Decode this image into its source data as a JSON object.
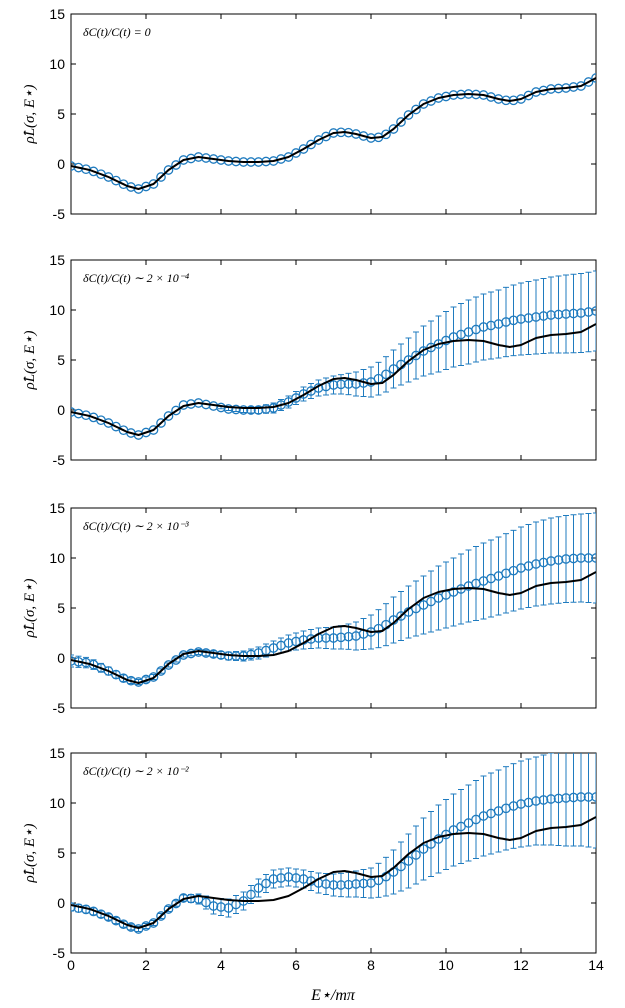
{
  "figure": {
    "xlabel": "E⋆/mπ",
    "ylabel": "ρ̂L(σ, E⋆)"
  },
  "colors": {
    "exact": "#000000",
    "estimate": "#1f7bbf"
  },
  "chart_data": [
    {
      "type": "line",
      "panel": 1,
      "annotation": "δC(t)/C(t) = 0",
      "xlim": [
        0,
        14
      ],
      "ylim": [
        -5,
        15
      ],
      "xticks": [
        0,
        2,
        4,
        6,
        8,
        10,
        12,
        14
      ],
      "yticks": [
        -5,
        0,
        5,
        10,
        15
      ],
      "x_tick_labels_shown": false,
      "series": [
        {
          "kind": "line",
          "x": [
            0,
            0.5,
            1.0,
            1.5,
            1.8,
            2.2,
            2.6,
            3.0,
            3.4,
            3.8,
            4.2,
            4.6,
            5.0,
            5.4,
            5.8,
            6.2,
            6.6,
            7.0,
            7.3,
            7.6,
            8.0,
            8.3,
            8.6,
            9.0,
            9.4,
            9.8,
            10.2,
            10.6,
            11.0,
            11.4,
            11.7,
            12.0,
            12.4,
            12.8,
            13.2,
            13.6,
            14.0
          ],
          "y": [
            -0.2,
            -0.6,
            -1.3,
            -2.2,
            -2.5,
            -2.0,
            -0.6,
            0.4,
            0.7,
            0.5,
            0.3,
            0.2,
            0.2,
            0.3,
            0.7,
            1.5,
            2.4,
            3.1,
            3.2,
            3.0,
            2.6,
            2.7,
            3.5,
            4.9,
            6.0,
            6.6,
            6.9,
            7.0,
            6.9,
            6.5,
            6.3,
            6.5,
            7.2,
            7.5,
            7.6,
            7.8,
            8.6
          ]
        },
        {
          "kind": "points",
          "x": [
            0,
            0.5,
            1.0,
            1.5,
            1.8,
            2.2,
            2.6,
            3.0,
            3.4,
            3.8,
            4.2,
            4.6,
            5.0,
            5.4,
            5.8,
            6.2,
            6.6,
            7.0,
            7.3,
            7.6,
            8.0,
            8.3,
            8.6,
            9.0,
            9.4,
            9.8,
            10.2,
            10.6,
            11.0,
            11.4,
            11.7,
            12.0,
            12.4,
            12.8,
            13.2,
            13.6,
            14.0
          ],
          "y": [
            -0.2,
            -0.6,
            -1.3,
            -2.2,
            -2.5,
            -2.0,
            -0.6,
            0.4,
            0.7,
            0.5,
            0.3,
            0.2,
            0.2,
            0.3,
            0.7,
            1.5,
            2.4,
            3.1,
            3.2,
            3.0,
            2.6,
            2.7,
            3.5,
            4.9,
            6.0,
            6.6,
            6.9,
            7.0,
            6.9,
            6.5,
            6.3,
            6.5,
            7.2,
            7.5,
            7.6,
            7.8,
            8.6
          ],
          "err": [
            0.03,
            0.03,
            0.03,
            0.03,
            0.03,
            0.03,
            0.03,
            0.03,
            0.03,
            0.03,
            0.03,
            0.03,
            0.03,
            0.03,
            0.03,
            0.03,
            0.03,
            0.03,
            0.03,
            0.03,
            0.03,
            0.03,
            0.03,
            0.03,
            0.03,
            0.03,
            0.03,
            0.03,
            0.03,
            0.03,
            0.03,
            0.03,
            0.03,
            0.03,
            0.03,
            0.03,
            0.03
          ]
        }
      ]
    },
    {
      "type": "line",
      "panel": 2,
      "annotation": "δC(t)/C(t) ∼ 2 × 10⁻⁴",
      "xlim": [
        0,
        14
      ],
      "ylim": [
        -5,
        15
      ],
      "xticks": [
        0,
        2,
        4,
        6,
        8,
        10,
        12,
        14
      ],
      "yticks": [
        -5,
        0,
        5,
        10,
        15
      ],
      "x_tick_labels_shown": false,
      "series": [
        {
          "kind": "line",
          "x": [
            0,
            0.5,
            1.0,
            1.5,
            1.8,
            2.2,
            2.6,
            3.0,
            3.4,
            3.8,
            4.2,
            4.6,
            5.0,
            5.4,
            5.8,
            6.2,
            6.6,
            7.0,
            7.3,
            7.6,
            8.0,
            8.3,
            8.6,
            9.0,
            9.4,
            9.8,
            10.2,
            10.6,
            11.0,
            11.4,
            11.7,
            12.0,
            12.4,
            12.8,
            13.2,
            13.6,
            14.0
          ],
          "y": [
            -0.2,
            -0.6,
            -1.3,
            -2.2,
            -2.5,
            -2.0,
            -0.6,
            0.4,
            0.7,
            0.5,
            0.3,
            0.2,
            0.2,
            0.3,
            0.7,
            1.5,
            2.4,
            3.1,
            3.2,
            3.0,
            2.6,
            2.7,
            3.5,
            4.9,
            6.0,
            6.6,
            6.9,
            7.0,
            6.9,
            6.5,
            6.3,
            6.5,
            7.2,
            7.5,
            7.6,
            7.8,
            8.6
          ]
        },
        {
          "kind": "points",
          "x": [
            0,
            0.5,
            1.0,
            1.5,
            1.8,
            2.2,
            2.6,
            3.0,
            3.4,
            3.8,
            4.2,
            4.6,
            5.0,
            5.4,
            5.8,
            6.2,
            6.6,
            7.0,
            7.3,
            7.6,
            8.0,
            8.3,
            8.6,
            9.0,
            9.4,
            9.8,
            10.2,
            10.6,
            11.0,
            11.4,
            11.7,
            12.0,
            12.4,
            12.8,
            13.2,
            13.6,
            14.0
          ],
          "y": [
            -0.2,
            -0.6,
            -1.3,
            -2.2,
            -2.5,
            -2.0,
            -0.6,
            0.5,
            0.7,
            0.4,
            0.1,
            0.0,
            0.0,
            0.2,
            0.8,
            1.6,
            2.2,
            2.5,
            2.6,
            2.6,
            2.8,
            3.3,
            4.1,
            5.0,
            5.9,
            6.6,
            7.3,
            7.8,
            8.3,
            8.6,
            8.9,
            9.1,
            9.3,
            9.5,
            9.6,
            9.7,
            9.9
          ],
          "err": [
            0.05,
            0.05,
            0.05,
            0.05,
            0.05,
            0.05,
            0.05,
            0.05,
            0.05,
            0.1,
            0.15,
            0.25,
            0.35,
            0.5,
            0.6,
            0.7,
            0.8,
            0.9,
            1.0,
            1.2,
            1.5,
            1.7,
            1.9,
            2.2,
            2.5,
            2.8,
            3.0,
            3.2,
            3.3,
            3.4,
            3.5,
            3.6,
            3.7,
            3.8,
            3.9,
            3.95,
            4.0
          ]
        }
      ]
    },
    {
      "type": "line",
      "panel": 3,
      "annotation": "δC(t)/C(t) ∼ 2 × 10⁻³",
      "xlim": [
        0,
        14
      ],
      "ylim": [
        -5,
        15
      ],
      "xticks": [
        0,
        2,
        4,
        6,
        8,
        10,
        12,
        14
      ],
      "yticks": [
        -5,
        0,
        5,
        10,
        15
      ],
      "x_tick_labels_shown": false,
      "series": [
        {
          "kind": "line",
          "x": [
            0,
            0.5,
            1.0,
            1.5,
            1.8,
            2.2,
            2.6,
            3.0,
            3.4,
            3.8,
            4.2,
            4.6,
            5.0,
            5.4,
            5.8,
            6.2,
            6.6,
            7.0,
            7.3,
            7.6,
            8.0,
            8.3,
            8.6,
            9.0,
            9.4,
            9.8,
            10.2,
            10.6,
            11.0,
            11.4,
            11.7,
            12.0,
            12.4,
            12.8,
            13.2,
            13.6,
            14.0
          ],
          "y": [
            -0.2,
            -0.6,
            -1.3,
            -2.2,
            -2.5,
            -2.0,
            -0.6,
            0.4,
            0.7,
            0.5,
            0.3,
            0.2,
            0.2,
            0.3,
            0.7,
            1.5,
            2.4,
            3.1,
            3.2,
            3.0,
            2.6,
            2.7,
            3.5,
            4.9,
            6.0,
            6.6,
            6.9,
            7.0,
            6.9,
            6.5,
            6.3,
            6.5,
            7.2,
            7.5,
            7.6,
            7.8,
            8.6
          ]
        },
        {
          "kind": "points",
          "x": [
            0,
            0.5,
            1.0,
            1.5,
            1.8,
            2.2,
            2.6,
            3.0,
            3.4,
            3.8,
            4.2,
            4.6,
            5.0,
            5.4,
            5.8,
            6.2,
            6.6,
            7.0,
            7.3,
            7.6,
            8.0,
            8.3,
            8.6,
            9.0,
            9.4,
            9.8,
            10.2,
            10.6,
            11.0,
            11.4,
            11.7,
            12.0,
            12.4,
            12.8,
            13.2,
            13.6,
            14.0
          ],
          "y": [
            -0.3,
            -0.5,
            -1.3,
            -2.2,
            -2.4,
            -1.9,
            -0.7,
            0.3,
            0.6,
            0.4,
            0.2,
            0.2,
            0.5,
            1.0,
            1.5,
            1.8,
            2.0,
            2.0,
            2.1,
            2.2,
            2.6,
            3.1,
            3.8,
            4.6,
            5.3,
            6.0,
            6.6,
            7.2,
            7.7,
            8.2,
            8.6,
            9.0,
            9.4,
            9.7,
            9.9,
            10.0,
            10.0
          ],
          "err": [
            0.6,
            0.5,
            0.4,
            0.3,
            0.25,
            0.25,
            0.2,
            0.2,
            0.25,
            0.3,
            0.4,
            0.5,
            0.6,
            0.7,
            0.8,
            0.9,
            1.0,
            1.1,
            1.2,
            1.4,
            1.7,
            2.0,
            2.3,
            2.6,
            2.9,
            3.2,
            3.4,
            3.6,
            3.8,
            3.9,
            4.0,
            4.1,
            4.2,
            4.3,
            4.35,
            4.4,
            4.5
          ]
        }
      ]
    },
    {
      "type": "line",
      "panel": 4,
      "annotation": "δC(t)/C(t) ∼ 2 × 10⁻²",
      "xlim": [
        0,
        14
      ],
      "ylim": [
        -5,
        15
      ],
      "xticks": [
        0,
        2,
        4,
        6,
        8,
        10,
        12,
        14
      ],
      "yticks": [
        -5,
        0,
        5,
        10,
        15
      ],
      "x_tick_labels_shown": true,
      "series": [
        {
          "kind": "line",
          "x": [
            0,
            0.5,
            1.0,
            1.5,
            1.8,
            2.2,
            2.6,
            3.0,
            3.4,
            3.8,
            4.2,
            4.6,
            5.0,
            5.4,
            5.8,
            6.2,
            6.6,
            7.0,
            7.3,
            7.6,
            8.0,
            8.3,
            8.6,
            9.0,
            9.4,
            9.8,
            10.2,
            10.6,
            11.0,
            11.4,
            11.7,
            12.0,
            12.4,
            12.8,
            13.2,
            13.6,
            14.0
          ],
          "y": [
            -0.2,
            -0.6,
            -1.3,
            -2.2,
            -2.5,
            -2.0,
            -0.6,
            0.4,
            0.7,
            0.5,
            0.3,
            0.2,
            0.2,
            0.3,
            0.7,
            1.5,
            2.4,
            3.1,
            3.2,
            3.0,
            2.6,
            2.7,
            3.5,
            4.9,
            6.0,
            6.6,
            6.9,
            7.0,
            6.9,
            6.5,
            6.3,
            6.5,
            7.2,
            7.5,
            7.6,
            7.8,
            8.6
          ]
        },
        {
          "kind": "points",
          "x": [
            0,
            0.5,
            1.0,
            1.5,
            1.8,
            2.2,
            2.6,
            3.0,
            3.4,
            3.8,
            4.2,
            4.6,
            5.0,
            5.4,
            5.8,
            6.2,
            6.6,
            7.0,
            7.3,
            7.6,
            8.0,
            8.3,
            8.6,
            9.0,
            9.4,
            9.8,
            10.2,
            10.6,
            11.0,
            11.4,
            11.7,
            12.0,
            12.4,
            12.8,
            13.2,
            13.6,
            14.0
          ],
          "y": [
            -0.4,
            -0.7,
            -1.4,
            -2.3,
            -2.6,
            -2.0,
            -0.6,
            0.5,
            0.4,
            -0.3,
            -0.5,
            0.2,
            1.5,
            2.4,
            2.6,
            2.4,
            2.0,
            1.8,
            1.8,
            1.9,
            2.0,
            2.4,
            3.1,
            4.2,
            5.4,
            6.4,
            7.3,
            8.0,
            8.7,
            9.2,
            9.6,
            9.9,
            10.2,
            10.4,
            10.5,
            10.6,
            10.6
          ],
          "err": [
            0.4,
            0.35,
            0.3,
            0.3,
            0.25,
            0.25,
            0.25,
            0.3,
            0.5,
            0.8,
            0.9,
            0.9,
            0.9,
            0.9,
            0.9,
            0.9,
            1.0,
            1.1,
            1.2,
            1.3,
            1.5,
            1.8,
            2.2,
            2.7,
            3.1,
            3.4,
            3.6,
            3.8,
            4.0,
            4.1,
            4.2,
            4.3,
            4.4,
            4.6,
            4.8,
            4.9,
            5.1
          ]
        }
      ]
    }
  ]
}
